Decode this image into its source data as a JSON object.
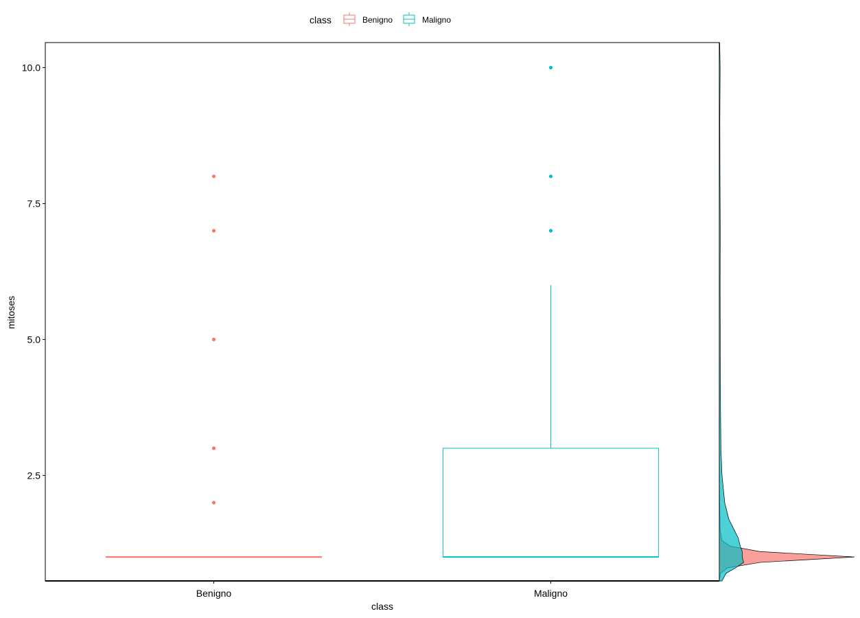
{
  "chart_data": {
    "type": "box",
    "xlabel": "class",
    "ylabel": "mitoses",
    "categories": [
      "Benigno",
      "Maligno"
    ],
    "ylim": [
      0.56,
      10.46
    ],
    "yticks": [
      "2.5",
      "5.0",
      "7.5",
      "10.0"
    ],
    "ytick_values": [
      2.5,
      5.0,
      7.5,
      10.0
    ],
    "grid": false,
    "legend": {
      "title": "class",
      "position": "top",
      "entries": [
        "Benigno",
        "Maligno"
      ]
    },
    "series": [
      {
        "name": "Benigno",
        "color": "#F8766D",
        "box": {
          "q1": 1,
          "median": 1,
          "q3": 1,
          "whisker_low": 1,
          "whisker_high": 1
        },
        "outliers": [
          2,
          3,
          5,
          7,
          8
        ]
      },
      {
        "name": "Maligno",
        "color": "#00BFC4",
        "box": {
          "q1": 1,
          "median": 1,
          "q3": 3,
          "whisker_low": 1,
          "whisker_high": 6
        },
        "outliers": [
          7,
          8,
          10
        ]
      }
    ],
    "marginal_density": {
      "type": "density",
      "orientation": "vertical",
      "series": [
        {
          "name": "Benigno",
          "color": "#F8766D",
          "y": [
            0.56,
            0.7,
            0.8,
            0.9,
            0.95,
            1.0,
            1.05,
            1.1,
            1.2,
            1.3,
            1.5,
            1.8,
            2.2,
            3.0,
            10.46
          ],
          "density": [
            0.0,
            0.008,
            0.06,
            0.3,
            0.65,
            1.0,
            0.65,
            0.3,
            0.08,
            0.02,
            0.006,
            0.004,
            0.002,
            0.001,
            0.0
          ]
        },
        {
          "name": "Maligno",
          "color": "#00BFC4",
          "y": [
            0.56,
            0.7,
            0.8,
            0.9,
            1.0,
            1.1,
            1.2,
            1.35,
            1.5,
            1.7,
            2.0,
            2.5,
            3.0,
            4.0,
            5.0,
            6.0,
            7.0,
            8.0,
            9.0,
            10.0,
            10.46
          ],
          "density": [
            0.02,
            0.05,
            0.12,
            0.18,
            0.17,
            0.17,
            0.155,
            0.14,
            0.11,
            0.07,
            0.04,
            0.02,
            0.012,
            0.008,
            0.007,
            0.006,
            0.007,
            0.005,
            0.004,
            0.006,
            0.003
          ]
        }
      ]
    }
  }
}
